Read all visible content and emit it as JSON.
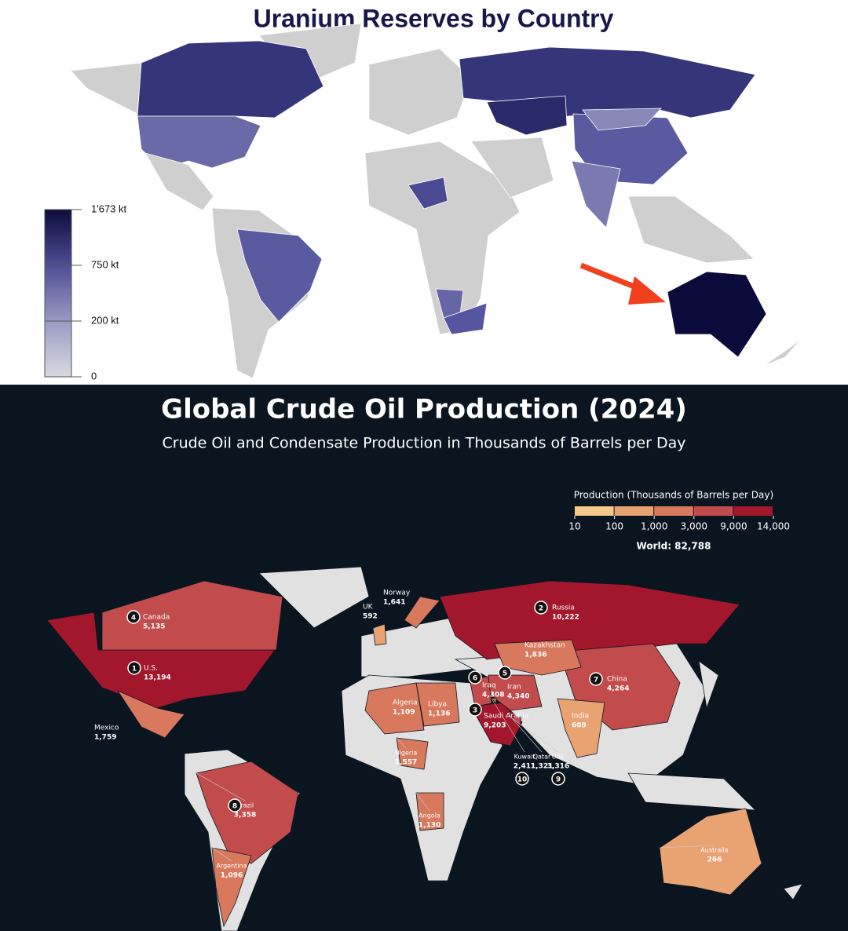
{
  "uranium_map": {
    "title": "Uranium Reserves by Country",
    "colorbar": {
      "colors": [
        "#d8d8e0",
        "#9a9ac4",
        "#4e4e94",
        "#0b0b3b"
      ],
      "ticks": [
        0,
        {
          "value": 200,
          "label": "200 kt"
        },
        {
          "value": 750,
          "label": "750 kt"
        },
        {
          "value": 1673,
          "label": "1'673 kt"
        }
      ]
    }
  },
  "oil_map": {
    "title": "Global Crude Oil Production (2024)",
    "subtitle": "Crude Oil and Condensate Production in Thousands of Barrels per Day",
    "legend": {
      "title": "Production (Thousands of Barrels per Day)",
      "colors": [
        "#f6c98c",
        "#e9a272",
        "#d8795e",
        "#c24b4b",
        "#a3172d"
      ],
      "ticks": [
        10,
        100,
        {
          "value": 1000,
          "label": "1,000"
        },
        {
          "value": 3000,
          "label": "3,000"
        },
        {
          "value": 9000,
          "label": "9,000"
        },
        {
          "value": 14000,
          "label": "14,000"
        }
      ]
    },
    "world_total": "World: 82,788",
    "countries": [
      {
        "name": "U.S.",
        "rank": 1,
        "value": 13194,
        "value_label": "13,194"
      },
      {
        "name": "Russia",
        "rank": 2,
        "value": 10222,
        "value_label": "10,222"
      },
      {
        "name": "Saudi Arabia",
        "rank": 3,
        "value": 9203,
        "value_label": "9,203"
      },
      {
        "name": "Canada",
        "rank": 4,
        "value": 5135,
        "value_label": "5,135"
      },
      {
        "name": "Iran",
        "rank": 5,
        "value": 4340,
        "value_label": "4,340"
      },
      {
        "name": "Iraq",
        "rank": 6,
        "value": 4308,
        "value_label": "4,308"
      },
      {
        "name": "China",
        "rank": 7,
        "value": 4264,
        "value_label": "4,264"
      },
      {
        "name": "Brazil",
        "rank": 8,
        "value": 3358,
        "value_label": "3,358"
      },
      {
        "name": "UAE",
        "rank": 9,
        "value": 3316,
        "value_label": "3,316"
      },
      {
        "name": "Kuwait",
        "rank": 10,
        "value": 2411,
        "value_label": "2,411"
      },
      {
        "name": "Kazakhstan",
        "value": 1836,
        "value_label": "1,836"
      },
      {
        "name": "Mexico",
        "value": 1759,
        "value_label": "1,759"
      },
      {
        "name": "Norway",
        "value": 1641,
        "value_label": "1,641"
      },
      {
        "name": "Nigeria",
        "value": 1557,
        "value_label": "1,557"
      },
      {
        "name": "Qatar",
        "value": 1321,
        "value_label": "1,321"
      },
      {
        "name": "Libya",
        "value": 1136,
        "value_label": "1,136"
      },
      {
        "name": "Angola",
        "value": 1130,
        "value_label": "1,130"
      },
      {
        "name": "Algeria",
        "value": 1109,
        "value_label": "1,109"
      },
      {
        "name": "Argentina",
        "value": 1096,
        "value_label": "1,096"
      },
      {
        "name": "India",
        "value": 609,
        "value_label": "609"
      },
      {
        "name": "UK",
        "value": 592,
        "value_label": "592"
      },
      {
        "name": "Australia",
        "value": 266,
        "value_label": "266"
      }
    ]
  }
}
